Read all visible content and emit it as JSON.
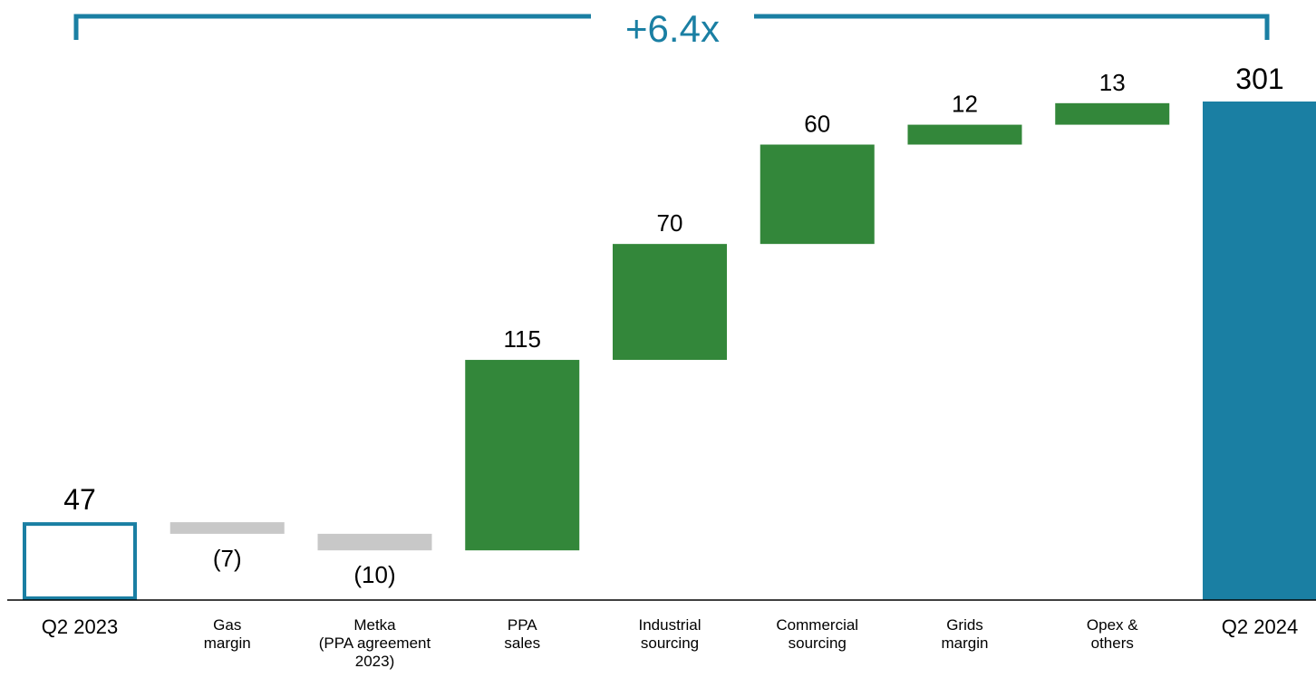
{
  "chart_data": {
    "type": "waterfall",
    "title": "",
    "xlabel": "",
    "ylabel": "",
    "ylim": [
      0,
      301
    ],
    "growth_annotation": "+6.4x",
    "categories": [
      "Q2 2023",
      "Gas margin",
      "Metka (PPA agreement 2023)",
      "PPA sales",
      "Industrial sourcing",
      "Commercial sourcing",
      "Grids margin",
      "Opex & others",
      "Q2 2024"
    ],
    "category_label_lines": [
      [
        "Q2 2023"
      ],
      [
        "Gas",
        "margin"
      ],
      [
        "Metka",
        "(PPA agreement",
        "2023)"
      ],
      [
        "PPA",
        "sales"
      ],
      [
        "Industrial",
        "sourcing"
      ],
      [
        "Commercial",
        "sourcing"
      ],
      [
        "Grids",
        "margin"
      ],
      [
        "Opex &",
        "others"
      ],
      [
        "Q2 2024"
      ]
    ],
    "bar_kinds": [
      "start",
      "decrease",
      "decrease",
      "increase",
      "increase",
      "increase",
      "increase",
      "increase",
      "end"
    ],
    "values": [
      47,
      -7,
      -10,
      115,
      70,
      60,
      12,
      13,
      301
    ],
    "data_labels": [
      "47",
      "(7)",
      "(10)",
      "115",
      "70",
      "60",
      "12",
      "13",
      "301"
    ],
    "colors": {
      "start_outline": "#1A7FA3",
      "decrease": "#C8C8C8",
      "increase": "#33873A",
      "end": "#1A7FA3",
      "growth_bracket": "#1A7FA3",
      "axis": "#000000",
      "text": "#000000"
    }
  }
}
